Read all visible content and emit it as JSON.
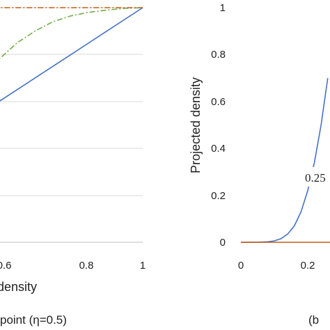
{
  "chart_data": [
    {
      "type": "line",
      "panel": "left",
      "xlabel": "density",
      "caption": "point (η=0.5)",
      "x_ticks": [
        "0.6",
        "0.8",
        "1"
      ],
      "xlim": [
        0.5,
        1.0
      ],
      "ylim": [
        0,
        1
      ],
      "grid": "horizontal",
      "series": [
        {
          "color": "#4472c4",
          "style": "solid",
          "x": [
            0.5,
            0.6,
            0.7,
            0.8,
            0.9,
            1.0
          ],
          "y": [
            0.5,
            0.6,
            0.7,
            0.8,
            0.9,
            1.0
          ]
        },
        {
          "color": "#70ad47",
          "style": "dashdot",
          "x": [
            0.5,
            0.55,
            0.6,
            0.65,
            0.7,
            0.75,
            0.8,
            0.85,
            0.9,
            0.95,
            1.0
          ],
          "y": [
            0.62,
            0.7,
            0.78,
            0.85,
            0.9,
            0.94,
            0.965,
            0.98,
            0.99,
            0.997,
            1.0
          ]
        },
        {
          "color": "#c55a11",
          "style": "dashdot",
          "x": [
            0.5,
            0.51,
            0.52,
            0.53,
            0.55,
            0.57,
            0.6,
            0.65,
            0.7,
            0.8,
            0.9,
            1.0
          ],
          "y": [
            0.96,
            0.98,
            0.99,
            0.995,
            0.999,
            1.0,
            1.0,
            1.0,
            1.0,
            1.0,
            1.0,
            1.0
          ]
        }
      ]
    },
    {
      "type": "line",
      "panel": "right",
      "ylabel": "Projected density",
      "caption": "(b",
      "annotation": "0.25",
      "x_ticks": [
        "0",
        "0.2"
      ],
      "y_ticks": [
        "0",
        "0.2",
        "0.4",
        "0.6",
        "0.8",
        "1"
      ],
      "xlim": [
        0,
        0.3
      ],
      "ylim": [
        0,
        1
      ],
      "grid": "none",
      "series": [
        {
          "color": "#4472c4",
          "style": "solid",
          "x": [
            0,
            0.05,
            0.08,
            0.1,
            0.12,
            0.14,
            0.16,
            0.18,
            0.2,
            0.22,
            0.24,
            0.25,
            0.26
          ],
          "y": [
            0,
            0.0005,
            0.002,
            0.006,
            0.015,
            0.035,
            0.07,
            0.13,
            0.22,
            0.34,
            0.5,
            0.6,
            0.7
          ]
        },
        {
          "color": "#c55a11",
          "style": "solid",
          "x": [
            0,
            0.3
          ],
          "y": [
            0,
            0
          ]
        }
      ]
    }
  ]
}
